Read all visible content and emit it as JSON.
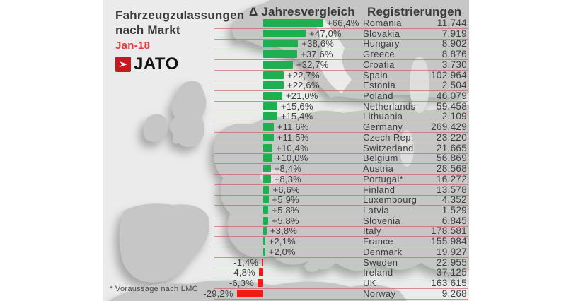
{
  "title": {
    "line1": "Fahrzeugzulassungen",
    "line2": "nach Markt",
    "period": "Jan-18"
  },
  "brand": {
    "name": "JATO"
  },
  "columns": {
    "change": "Δ Jahresvergleich",
    "registrations": "Registrierungen"
  },
  "footnote": "* Voraussage nach LMC",
  "colors": {
    "positive_bar": "#1fae52",
    "negative_bar": "#ec1c1c",
    "panel_bg": "#ebebeb",
    "map_fill": "#c6c6c6",
    "separator": "#c1605a",
    "period_red": "#e03a3a",
    "text": "#3f3d3e"
  },
  "chart_data": {
    "type": "bar",
    "orientation": "horizontal",
    "title": "Fahrzeugzulassungen nach Markt (Jan-18)",
    "xlabel": "Δ Jahresvergleich (%)",
    "ylabel": "Markt",
    "legend": false,
    "categories": [
      "Romania",
      "Slovakia",
      "Hungary",
      "Greece",
      "Croatia",
      "Spain",
      "Estonia",
      "Poland",
      "Netherlands",
      "Lithuania",
      "Germany",
      "Czech Rep.",
      "Switzerland",
      "Belgium",
      "Austria",
      "Portugal*",
      "Finland",
      "Luxembourg",
      "Latvia",
      "Slovenia",
      "Italy",
      "France",
      "Denmark",
      "Sweden",
      "Ireland",
      "UK",
      "Norway"
    ],
    "series": [
      {
        "name": "Δ Jahresvergleich (%)",
        "values": [
          66.4,
          47.0,
          38.6,
          37.6,
          32.7,
          22.7,
          22.6,
          21.0,
          15.6,
          15.4,
          11.6,
          11.5,
          10.4,
          10.0,
          8.4,
          8.3,
          6.6,
          5.9,
          5.8,
          5.8,
          3.8,
          2.1,
          2.0,
          -1.4,
          -4.8,
          -6.3,
          -29.2
        ]
      },
      {
        "name": "Registrierungen",
        "values": [
          11744,
          7919,
          8902,
          8876,
          3730,
          102964,
          2504,
          46079,
          59458,
          2109,
          269429,
          23220,
          21665,
          56869,
          28568,
          16272,
          13578,
          4352,
          1529,
          6845,
          178581,
          155984,
          19927,
          22955,
          37125,
          163615,
          9268
        ]
      }
    ],
    "rows": [
      {
        "country": "Romania",
        "change_label": "+66,4%",
        "change_pct": 66.4,
        "registrations_label": "11.744"
      },
      {
        "country": "Slovakia",
        "change_label": "+47,0%",
        "change_pct": 47.0,
        "registrations_label": "7.919"
      },
      {
        "country": "Hungary",
        "change_label": "+38,6%",
        "change_pct": 38.6,
        "registrations_label": "8.902"
      },
      {
        "country": "Greece",
        "change_label": "+37,6%",
        "change_pct": 37.6,
        "registrations_label": "8.876"
      },
      {
        "country": "Croatia",
        "change_label": "+32,7%",
        "change_pct": 32.7,
        "registrations_label": "3.730"
      },
      {
        "country": "Spain",
        "change_label": "+22,7%",
        "change_pct": 22.7,
        "registrations_label": "102.964"
      },
      {
        "country": "Estonia",
        "change_label": "+22,6%",
        "change_pct": 22.6,
        "registrations_label": "2.504"
      },
      {
        "country": "Poland",
        "change_label": "+21,0%",
        "change_pct": 21.0,
        "registrations_label": "46.079"
      },
      {
        "country": "Netherlands",
        "change_label": "+15,6%",
        "change_pct": 15.6,
        "registrations_label": "59.458"
      },
      {
        "country": "Lithuania",
        "change_label": "+15,4%",
        "change_pct": 15.4,
        "registrations_label": "2.109"
      },
      {
        "country": "Germany",
        "change_label": "+11,6%",
        "change_pct": 11.6,
        "registrations_label": "269.429"
      },
      {
        "country": "Czech Rep.",
        "change_label": "+11,5%",
        "change_pct": 11.5,
        "registrations_label": "23.220"
      },
      {
        "country": "Switzerland",
        "change_label": "+10,4%",
        "change_pct": 10.4,
        "registrations_label": "21.665"
      },
      {
        "country": "Belgium",
        "change_label": "+10,0%",
        "change_pct": 10.0,
        "registrations_label": "56.869"
      },
      {
        "country": "Austria",
        "change_label": "+8,4%",
        "change_pct": 8.4,
        "registrations_label": "28.568"
      },
      {
        "country": "Portugal*",
        "change_label": "+8,3%",
        "change_pct": 8.3,
        "registrations_label": "16.272"
      },
      {
        "country": "Finland",
        "change_label": "+6,6%",
        "change_pct": 6.6,
        "registrations_label": "13.578"
      },
      {
        "country": "Luxembourg",
        "change_label": "+5,9%",
        "change_pct": 5.9,
        "registrations_label": "4.352"
      },
      {
        "country": "Latvia",
        "change_label": "+5,8%",
        "change_pct": 5.8,
        "registrations_label": "1.529"
      },
      {
        "country": "Slovenia",
        "change_label": "+5,8%",
        "change_pct": 5.8,
        "registrations_label": "6.845"
      },
      {
        "country": "Italy",
        "change_label": "+3,8%",
        "change_pct": 3.8,
        "registrations_label": "178.581"
      },
      {
        "country": "France",
        "change_label": "+2,1%",
        "change_pct": 2.1,
        "registrations_label": "155.984"
      },
      {
        "country": "Denmark",
        "change_label": "+2,0%",
        "change_pct": 2.0,
        "registrations_label": "19.927"
      },
      {
        "country": "Sweden",
        "change_label": "-1,4%",
        "change_pct": -1.4,
        "registrations_label": "22.955"
      },
      {
        "country": "Ireland",
        "change_label": "-4,8%",
        "change_pct": -4.8,
        "registrations_label": "37.125"
      },
      {
        "country": "UK",
        "change_label": "-6,3%",
        "change_pct": -6.3,
        "registrations_label": "163.615"
      },
      {
        "country": "Norway",
        "change_label": "-29,2%",
        "change_pct": -29.2,
        "registrations_label": "9.268"
      }
    ]
  }
}
